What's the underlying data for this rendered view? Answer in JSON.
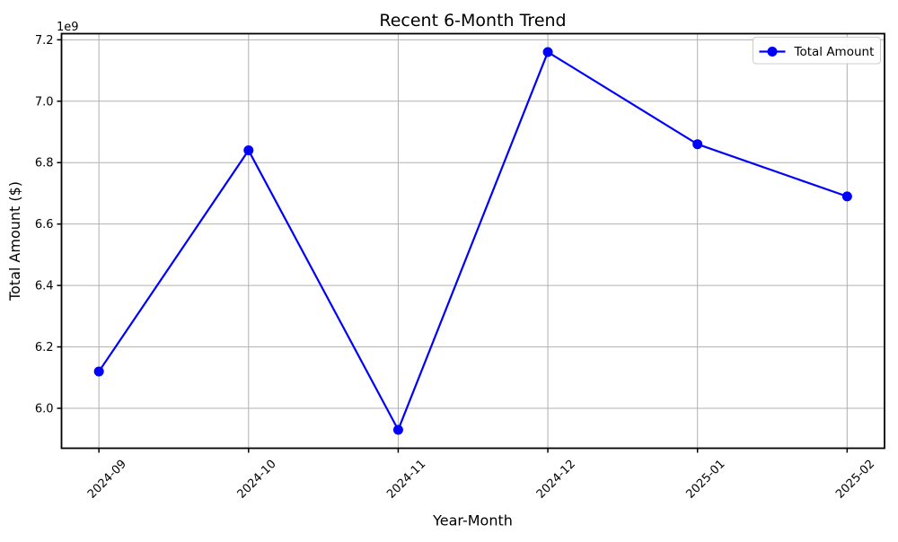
{
  "chart_data": {
    "type": "line",
    "title": "Recent 6-Month Trend",
    "xlabel": "Year-Month",
    "ylabel": "Total Amount ($)",
    "y_axis_offset_text": "1e9",
    "categories": [
      "2024-09",
      "2024-10",
      "2024-11",
      "2024-12",
      "2025-01",
      "2025-02"
    ],
    "series": [
      {
        "name": "Total Amount",
        "values": [
          6120000000,
          6840000000,
          5930000000,
          7160000000,
          6860000000,
          6690000000
        ],
        "color": "#0000ff",
        "marker": "circle",
        "line_width": 2.2,
        "marker_radius": 5.5
      }
    ],
    "ylim": [
      5870000000,
      7220000000
    ],
    "yticks": [
      6000000000,
      6200000000,
      6400000000,
      6600000000,
      6800000000,
      7000000000,
      7200000000
    ],
    "ytick_labels": [
      "6.0",
      "6.2",
      "6.4",
      "6.6",
      "6.8",
      "7.0",
      "7.2"
    ],
    "x_tick_rotation": 45,
    "grid": true,
    "legend": {
      "position": "upper right",
      "entries": [
        "Total Amount"
      ]
    },
    "colors": {
      "line": "#0000ff",
      "grid": "#b0b0b0",
      "spine": "#000000",
      "text": "#000000",
      "legend_border": "#cccccc",
      "legend_bg": "#ffffff",
      "background": "#ffffff"
    }
  }
}
